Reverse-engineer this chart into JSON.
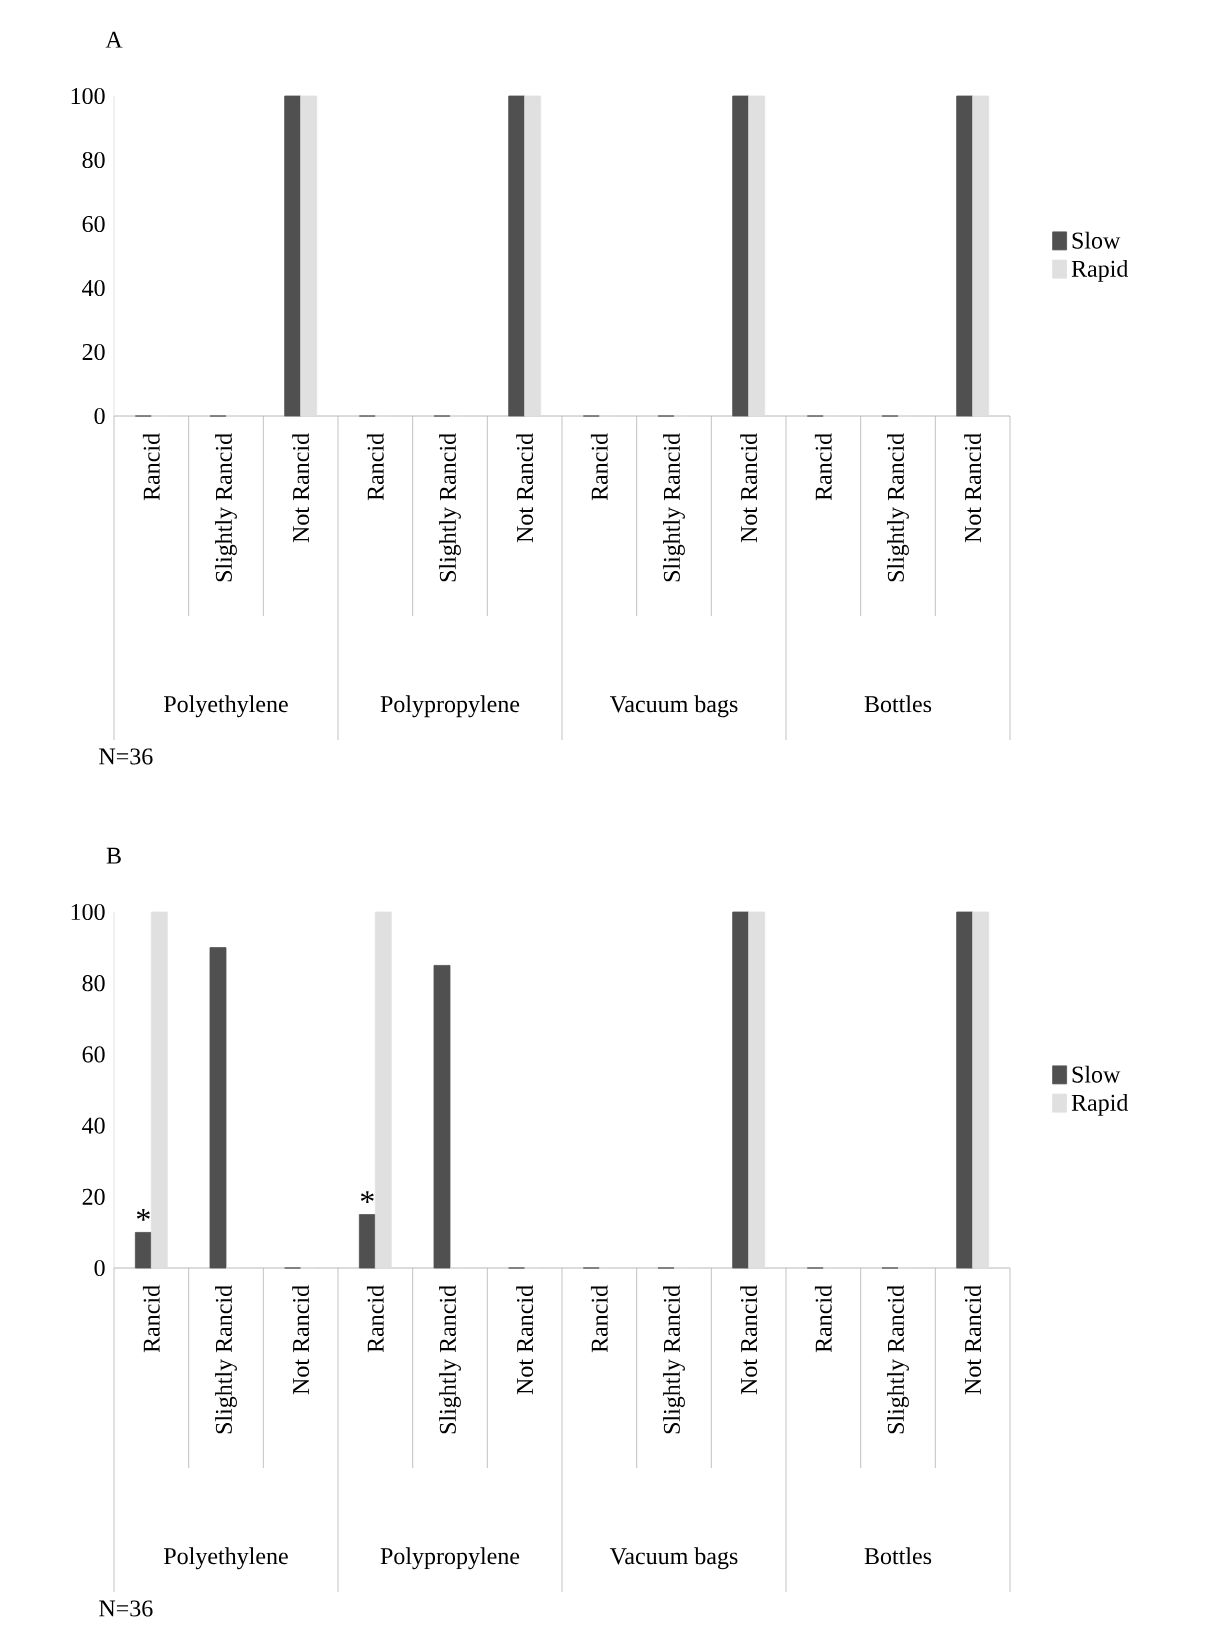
{
  "chart_data": [
    {
      "type": "bar",
      "title": "A",
      "categories": [
        "Rancid",
        "Slightly Rancid",
        "Not Rancid",
        "Rancid",
        "Slightly Rancid",
        "Not Rancid",
        "Rancid",
        "Slightly Rancid",
        "Not Rancid",
        "Rancid",
        "Slightly Rancid",
        "Not Rancid"
      ],
      "series": [
        {
          "name": "Slow",
          "color": "#505050",
          "values": [
            0,
            0,
            100,
            0,
            0,
            100,
            0,
            0,
            100,
            0,
            0,
            100
          ]
        },
        {
          "name": "Rapid",
          "color": "#e0e0e0",
          "values": [
            0,
            0,
            100,
            0,
            0,
            100,
            0,
            0,
            100,
            0,
            0,
            100
          ]
        }
      ],
      "ylim": [
        0,
        100
      ],
      "yticks": [
        0,
        20,
        40,
        60,
        80,
        100
      ],
      "legend": "right",
      "annotations": [
        "Polyethylene",
        "Polypropylene",
        "Vacuum bags",
        "Bottles",
        "N=36"
      ]
    },
    {
      "type": "bar",
      "title": "B",
      "categories": [
        "Rancid",
        "Slightly Rancid",
        "Not Rancid",
        "Rancid",
        "Slightly Rancid",
        "Not Rancid",
        "Rancid",
        "Slightly Rancid",
        "Not Rancid",
        "Rancid",
        "Slightly Rancid",
        "Not Rancid"
      ],
      "series": [
        {
          "name": "Slow",
          "color": "#505050",
          "values": [
            10,
            90,
            0,
            15,
            85,
            0,
            0,
            0,
            100,
            0,
            0,
            100
          ]
        },
        {
          "name": "Rapid",
          "color": "#e0e0e0",
          "values": [
            100,
            0,
            0,
            100,
            0,
            0,
            0,
            0,
            100,
            0,
            0,
            100
          ]
        }
      ],
      "ylim": [
        0,
        100
      ],
      "yticks": [
        0,
        20,
        40,
        60,
        80,
        100
      ],
      "legend": "right",
      "annotations": [
        "Polyethylene",
        "Polypropylene",
        "Vacuum bags",
        "Bottles",
        "N=36",
        "*",
        "*"
      ]
    }
  ]
}
